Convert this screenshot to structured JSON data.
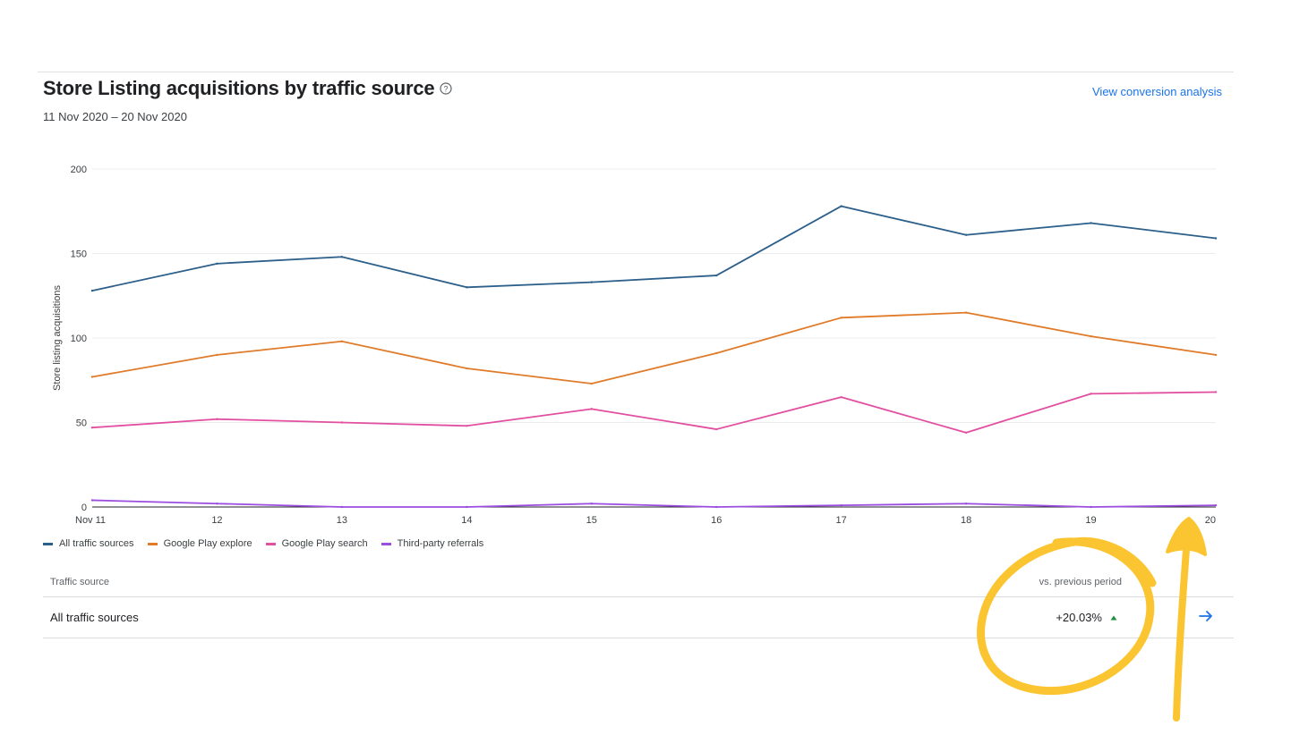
{
  "header": {
    "title": "Store Listing acquisitions by traffic source",
    "help_icon": "help-circle-icon",
    "date_range": "11 Nov 2020 – 20 Nov 2020",
    "view_link": "View conversion analysis"
  },
  "chart_data": {
    "type": "line",
    "ylabel": "Store listing acquisitions",
    "xlabel": "",
    "categories": [
      "Nov 11",
      "12",
      "13",
      "14",
      "15",
      "16",
      "17",
      "18",
      "19",
      "20"
    ],
    "ylim": [
      0,
      200
    ],
    "yticks": [
      0,
      50,
      100,
      150,
      200
    ],
    "series": [
      {
        "name": "All traffic sources",
        "color": "#2c5f8a",
        "values": [
          128,
          144,
          148,
          130,
          133,
          137,
          178,
          161,
          168,
          159
        ]
      },
      {
        "name": "Google Play explore",
        "color": "#e07b2a",
        "values": [
          77,
          90,
          98,
          82,
          73,
          91,
          112,
          115,
          101,
          90
        ]
      },
      {
        "name": "Google Play search",
        "color": "#e24fa0",
        "values": [
          47,
          52,
          50,
          48,
          58,
          46,
          65,
          44,
          67,
          68
        ]
      },
      {
        "name": "Third-party referrals",
        "color": "#9b4de0",
        "values": [
          4,
          2,
          0,
          0,
          2,
          0,
          1,
          2,
          0,
          1
        ]
      }
    ],
    "grid": true
  },
  "table": {
    "col_source": "Traffic source",
    "col_vs": "vs. previous period",
    "rows": [
      {
        "source": "All traffic sources",
        "change": "+20.03%",
        "trend_icon": "triangle-up-icon",
        "trend_color": "#1e8e3e",
        "action_icon": "arrow-right-icon"
      }
    ]
  },
  "colors": {
    "accent": "#1a73e8",
    "annotation": "#fbc531"
  }
}
